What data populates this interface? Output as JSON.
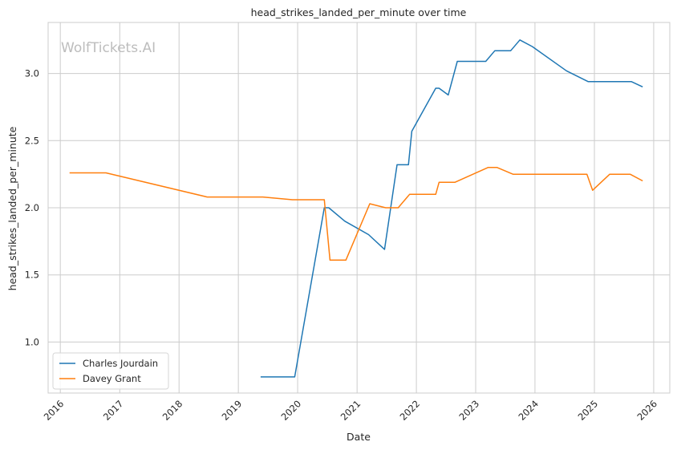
{
  "chart_data": {
    "type": "line",
    "title": "head_strikes_landed_per_minute over time",
    "xlabel": "Date",
    "ylabel": "head_strikes_landed_per_minute",
    "watermark": "WolfTickets.AI",
    "x_ticks": [
      "2016",
      "2017",
      "2018",
      "2019",
      "2020",
      "2021",
      "2022",
      "2023",
      "2024",
      "2025",
      "2026"
    ],
    "y_ticks": [
      "1.0",
      "1.5",
      "2.0",
      "2.5",
      "3.0"
    ],
    "xlim": [
      "2015-10-18",
      "2026-04-10"
    ],
    "ylim": [
      0.62,
      3.38
    ],
    "grid": true,
    "legend_position": "lower-left",
    "series": [
      {
        "name": "Charles Jourdain",
        "color": "#1f77b4",
        "points": [
          [
            "2019-05-18",
            0.74
          ],
          [
            "2019-12-14",
            0.74
          ],
          [
            "2020-06-13",
            2.0
          ],
          [
            "2020-07-11",
            2.0
          ],
          [
            "2020-10-17",
            1.9
          ],
          [
            "2021-03-13",
            1.8
          ],
          [
            "2021-06-19",
            1.69
          ],
          [
            "2021-09-04",
            2.32
          ],
          [
            "2021-11-13",
            2.32
          ],
          [
            "2021-12-04",
            2.57
          ],
          [
            "2022-04-30",
            2.89
          ],
          [
            "2022-05-21",
            2.89
          ],
          [
            "2022-07-16",
            2.84
          ],
          [
            "2022-09-10",
            3.09
          ],
          [
            "2023-03-04",
            3.09
          ],
          [
            "2023-04-29",
            3.17
          ],
          [
            "2023-08-05",
            3.17
          ],
          [
            "2023-09-30",
            3.25
          ],
          [
            "2023-12-16",
            3.2
          ],
          [
            "2024-07-13",
            3.02
          ],
          [
            "2024-11-23",
            2.94
          ],
          [
            "2025-08-16",
            2.94
          ],
          [
            "2025-10-25",
            2.9
          ]
        ]
      },
      {
        "name": "Davey Grant",
        "color": "#ff7f0e",
        "points": [
          [
            "2016-02-27",
            2.26
          ],
          [
            "2016-10-08",
            2.26
          ],
          [
            "2018-06-23",
            2.08
          ],
          [
            "2019-06-01",
            2.08
          ],
          [
            "2019-11-30",
            2.06
          ],
          [
            "2020-06-13",
            2.06
          ],
          [
            "2020-07-18",
            1.61
          ],
          [
            "2020-10-24",
            1.61
          ],
          [
            "2021-03-20",
            2.03
          ],
          [
            "2021-06-26",
            2.0
          ],
          [
            "2021-09-11",
            2.0
          ],
          [
            "2021-11-20",
            2.1
          ],
          [
            "2022-04-30",
            2.1
          ],
          [
            "2022-05-21",
            2.19
          ],
          [
            "2022-08-27",
            2.19
          ],
          [
            "2023-03-18",
            2.3
          ],
          [
            "2023-05-13",
            2.3
          ],
          [
            "2023-08-19",
            2.25
          ],
          [
            "2024-11-16",
            2.25
          ],
          [
            "2024-12-21",
            2.13
          ],
          [
            "2025-04-05",
            2.25
          ],
          [
            "2025-08-09",
            2.25
          ],
          [
            "2025-10-25",
            2.2
          ]
        ]
      }
    ]
  }
}
